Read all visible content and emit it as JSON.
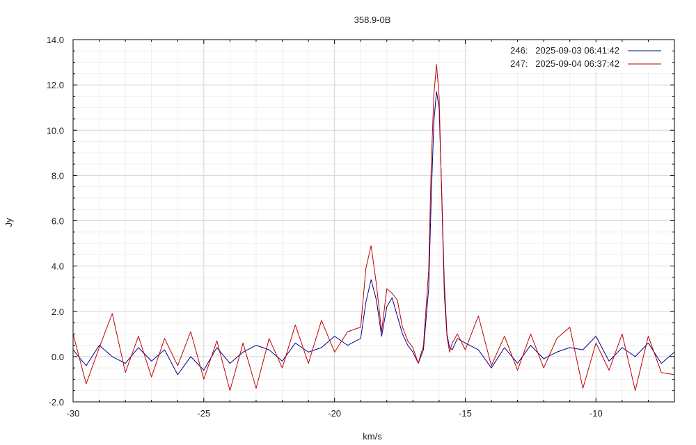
{
  "chart_data": {
    "type": "line",
    "title": "358.9-0B",
    "xlabel": "km/s",
    "ylabel": "Jy",
    "xlim": [
      -30,
      -7
    ],
    "ylim": [
      -2,
      14
    ],
    "x_ticks": [
      {
        "value": -30,
        "label": "-30"
      },
      {
        "value": -25,
        "label": "-25"
      },
      {
        "value": -20,
        "label": "-20"
      },
      {
        "value": -15,
        "label": "-15"
      },
      {
        "value": -10,
        "label": "-10"
      }
    ],
    "y_ticks": [
      {
        "value": -2,
        "label": "-2.0"
      },
      {
        "value": 0,
        "label": "0.0"
      },
      {
        "value": 2,
        "label": "2.0"
      },
      {
        "value": 4,
        "label": "4.0"
      },
      {
        "value": 6,
        "label": "6.0"
      },
      {
        "value": 8,
        "label": "8.0"
      },
      {
        "value": 10,
        "label": "10.0"
      },
      {
        "value": 12,
        "label": "12.0"
      },
      {
        "value": 14,
        "label": "14.0"
      }
    ],
    "grid": true,
    "legend_position": "top-right",
    "series": [
      {
        "name": "246:   2025-09-03 06:41:42",
        "color": "#00008b",
        "x": [
          -30.0,
          -29.5,
          -29.0,
          -28.5,
          -28.0,
          -27.5,
          -27.0,
          -26.5,
          -26.0,
          -25.5,
          -25.0,
          -24.5,
          -24.0,
          -23.5,
          -23.0,
          -22.5,
          -22.0,
          -21.5,
          -21.0,
          -20.5,
          -20.0,
          -19.5,
          -19.0,
          -18.8,
          -18.6,
          -18.4,
          -18.2,
          -18.0,
          -17.8,
          -17.6,
          -17.4,
          -17.2,
          -17.0,
          -16.8,
          -16.6,
          -16.4,
          -16.3,
          -16.2,
          -16.1,
          -16.0,
          -15.9,
          -15.8,
          -15.7,
          -15.6,
          -15.5,
          -15.3,
          -15.0,
          -14.5,
          -14.0,
          -13.5,
          -13.0,
          -12.5,
          -12.0,
          -11.5,
          -11.0,
          -10.5,
          -10.0,
          -9.5,
          -9.0,
          -8.5,
          -8.0,
          -7.5,
          -7.0
        ],
        "values": [
          0.3,
          -0.4,
          0.5,
          0.0,
          -0.3,
          0.4,
          -0.2,
          0.3,
          -0.8,
          0.0,
          -0.6,
          0.4,
          -0.3,
          0.2,
          0.5,
          0.3,
          -0.2,
          0.6,
          0.2,
          0.4,
          0.9,
          0.5,
          0.8,
          2.4,
          3.4,
          2.5,
          0.9,
          2.2,
          2.6,
          1.8,
          1.0,
          0.5,
          0.2,
          -0.3,
          0.3,
          3.0,
          7.0,
          10.4,
          11.7,
          11.0,
          7.2,
          3.2,
          1.0,
          0.4,
          0.3,
          0.8,
          0.6,
          0.3,
          -0.5,
          0.4,
          -0.3,
          0.5,
          -0.1,
          0.2,
          0.4,
          0.3,
          0.9,
          -0.2,
          0.4,
          0.0,
          0.6,
          -0.3,
          0.2
        ]
      },
      {
        "name": "247:   2025-09-04 06:37:42",
        "color": "#c00000",
        "x": [
          -30.0,
          -29.5,
          -29.0,
          -28.5,
          -28.0,
          -27.5,
          -27.0,
          -26.5,
          -26.0,
          -25.5,
          -25.0,
          -24.5,
          -24.0,
          -23.5,
          -23.0,
          -22.5,
          -22.0,
          -21.5,
          -21.0,
          -20.5,
          -20.0,
          -19.5,
          -19.0,
          -18.8,
          -18.6,
          -18.4,
          -18.2,
          -18.0,
          -17.8,
          -17.6,
          -17.4,
          -17.2,
          -17.0,
          -16.8,
          -16.6,
          -16.4,
          -16.3,
          -16.2,
          -16.1,
          -16.0,
          -15.9,
          -15.8,
          -15.7,
          -15.6,
          -15.5,
          -15.3,
          -15.0,
          -14.5,
          -14.0,
          -13.5,
          -13.0,
          -12.5,
          -12.0,
          -11.5,
          -11.0,
          -10.5,
          -10.0,
          -9.5,
          -9.0,
          -8.5,
          -8.0,
          -7.5,
          -7.0
        ],
        "values": [
          1.0,
          -1.2,
          0.4,
          1.9,
          -0.7,
          0.9,
          -0.9,
          0.8,
          -0.4,
          1.1,
          -1.0,
          0.7,
          -1.5,
          0.6,
          -1.4,
          0.8,
          -0.5,
          1.4,
          -0.3,
          1.6,
          0.2,
          1.1,
          1.3,
          3.9,
          4.9,
          3.2,
          1.1,
          3.0,
          2.8,
          2.5,
          1.3,
          0.7,
          0.4,
          -0.3,
          0.5,
          3.8,
          8.5,
          11.6,
          12.9,
          11.5,
          7.0,
          2.7,
          0.9,
          0.2,
          0.6,
          1.0,
          0.3,
          1.8,
          -0.4,
          0.9,
          -0.6,
          1.0,
          -0.5,
          0.8,
          1.3,
          -1.4,
          0.6,
          -0.6,
          1.0,
          -1.5,
          0.9,
          -0.7,
          -0.8
        ]
      }
    ]
  }
}
